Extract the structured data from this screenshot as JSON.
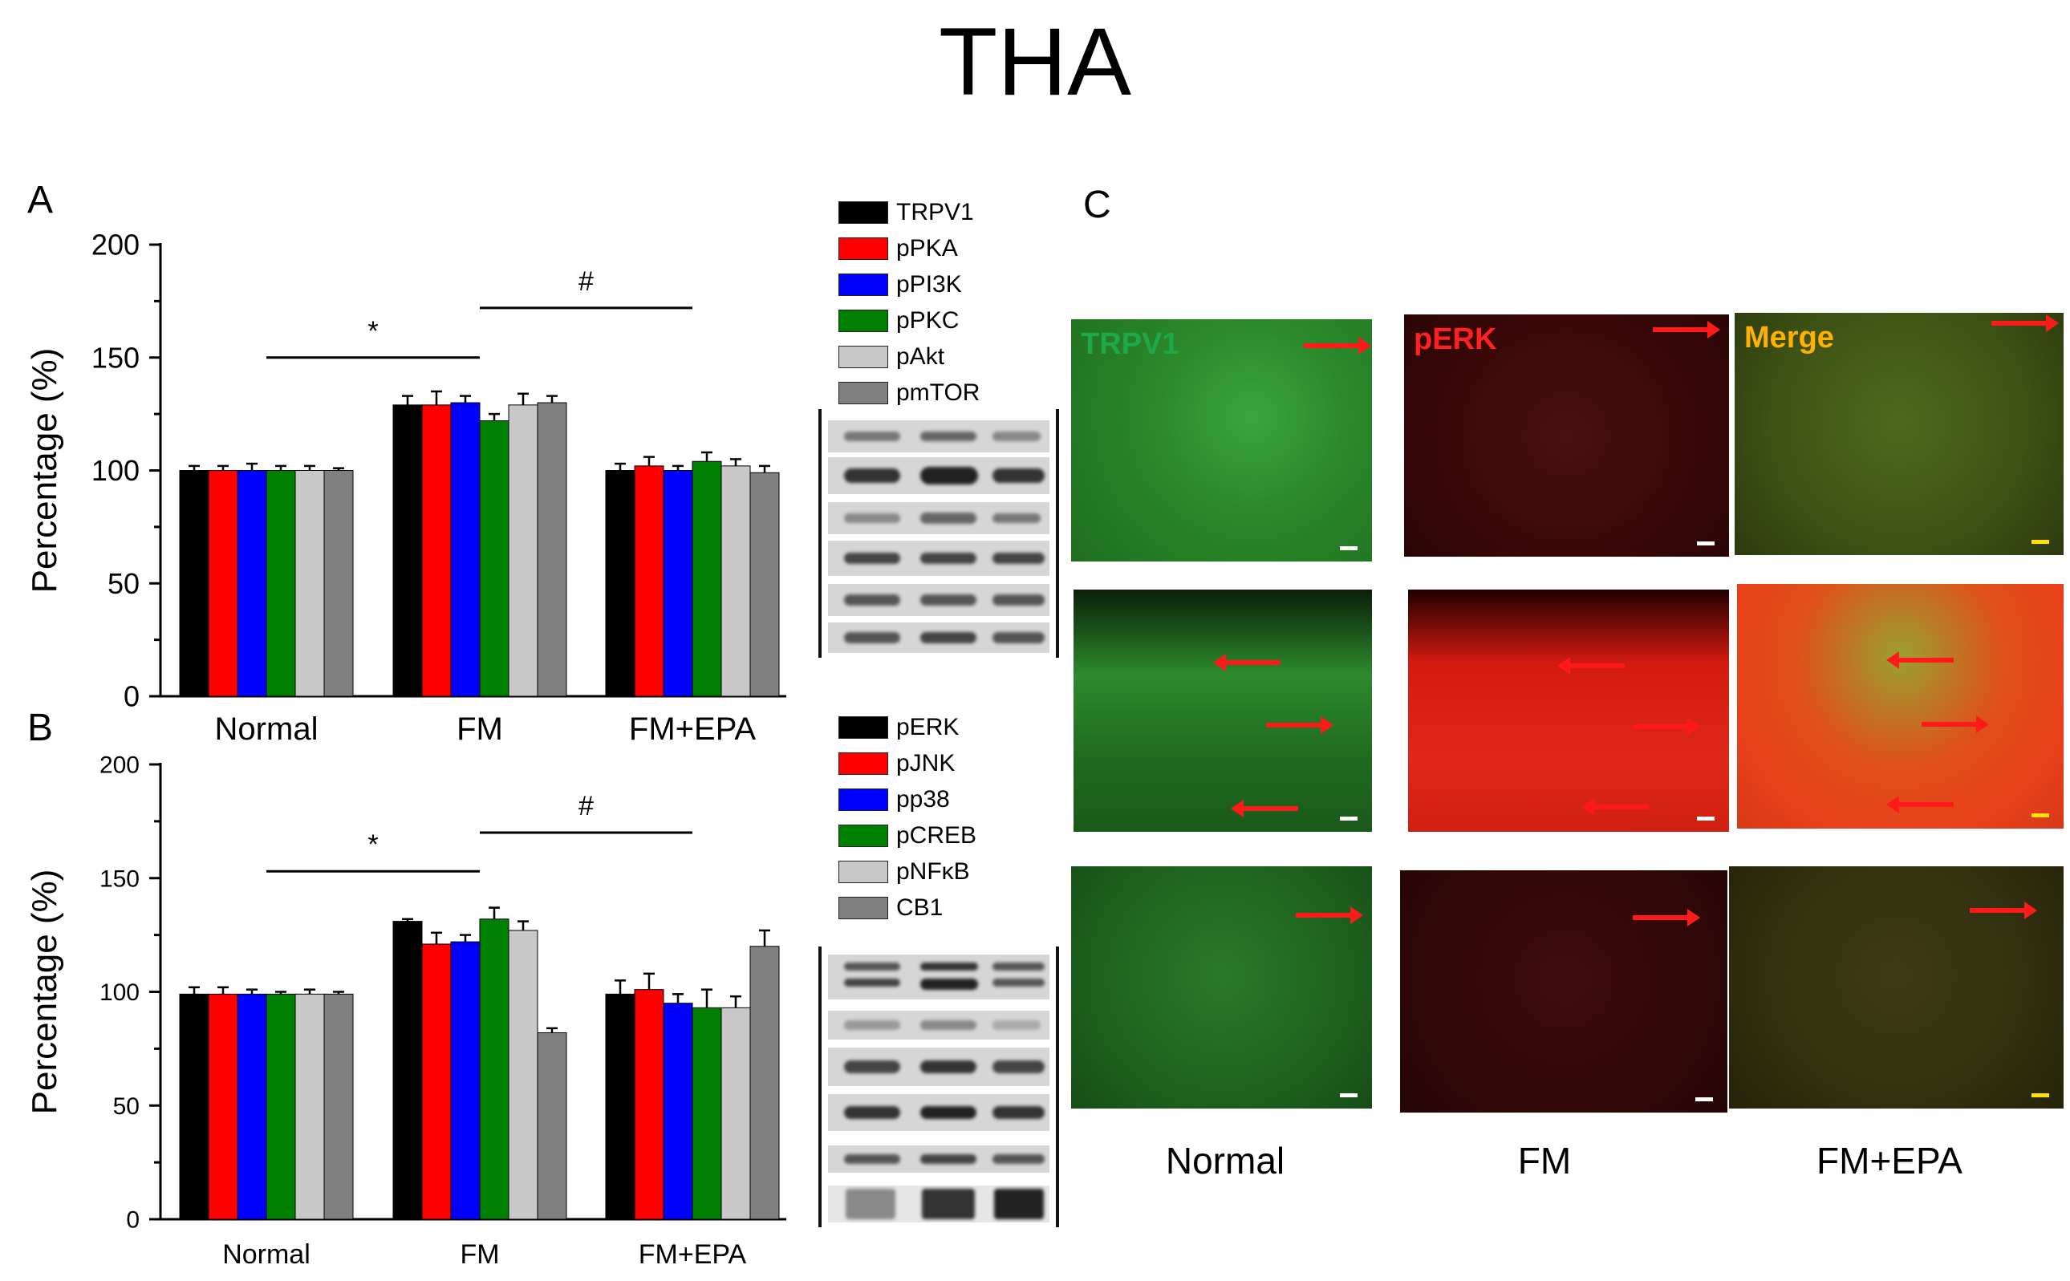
{
  "figure_title": "THA",
  "panels": {
    "a": "A",
    "b": "B",
    "c": "C"
  },
  "legend_a": [
    "TRPV1",
    "pPKA",
    "pPI3K",
    "pPKC",
    "pAkt",
    "pmTOR"
  ],
  "legend_b": [
    "pERK",
    "pJNK",
    "pp38",
    "pCREB",
    "pNFκB",
    "CB1"
  ],
  "colors": [
    "#000000",
    "#ff0000",
    "#0000ff",
    "#008000",
    "#c8c8c8",
    "#808080"
  ],
  "micrograph": {
    "channel_labels": [
      "TRPV1",
      "pERK",
      "Merge"
    ],
    "channel_colors": [
      "#1fa84a",
      "#ff2020",
      "#ffb000"
    ],
    "column_labels": [
      "Normal",
      "FM",
      "FM+EPA"
    ]
  },
  "chart_data": [
    {
      "type": "bar",
      "panel": "A",
      "categories": [
        "Normal",
        "FM",
        "FM+EPA"
      ],
      "ylabel": "Percentage (%)",
      "ylim": [
        0,
        200
      ],
      "yticks": [
        0,
        50,
        100,
        150,
        200
      ],
      "series": [
        {
          "name": "TRPV1",
          "values": [
            100,
            129,
            100
          ],
          "errors": [
            2,
            4,
            3
          ]
        },
        {
          "name": "pPKA",
          "values": [
            100,
            129,
            102
          ],
          "errors": [
            2,
            6,
            4
          ]
        },
        {
          "name": "pPI3K",
          "values": [
            100,
            130,
            100
          ],
          "errors": [
            3,
            3,
            2
          ]
        },
        {
          "name": "pPKC",
          "values": [
            100,
            122,
            104
          ],
          "errors": [
            2,
            3,
            4
          ]
        },
        {
          "name": "pAkt",
          "values": [
            100,
            129,
            102
          ],
          "errors": [
            2,
            5,
            3
          ]
        },
        {
          "name": "pmTOR",
          "values": [
            100,
            130,
            99
          ],
          "errors": [
            1,
            3,
            3
          ]
        }
      ],
      "annotations": [
        {
          "text": "*",
          "from": "Normal",
          "to": "FM",
          "y": 150
        },
        {
          "text": "#",
          "from": "FM",
          "to": "FM+EPA",
          "y": 172
        }
      ],
      "legend": "right"
    },
    {
      "type": "bar",
      "panel": "B",
      "categories": [
        "Normal",
        "FM",
        "FM+EPA"
      ],
      "ylabel": "Percentage (%)",
      "ylim": [
        0,
        200
      ],
      "yticks": [
        0,
        50,
        100,
        150,
        200
      ],
      "series": [
        {
          "name": "pERK",
          "values": [
            99,
            131,
            99
          ],
          "errors": [
            3,
            1,
            6
          ]
        },
        {
          "name": "pJNK",
          "values": [
            99,
            121,
            101
          ],
          "errors": [
            3,
            5,
            7
          ]
        },
        {
          "name": "pp38",
          "values": [
            99,
            122,
            95
          ],
          "errors": [
            2,
            3,
            4
          ]
        },
        {
          "name": "pCREB",
          "values": [
            99,
            132,
            93
          ],
          "errors": [
            1,
            5,
            8
          ]
        },
        {
          "name": "pNFκB",
          "values": [
            99,
            127,
            93
          ],
          "errors": [
            2,
            4,
            5
          ]
        },
        {
          "name": "CB1",
          "values": [
            99,
            82,
            120
          ],
          "errors": [
            1,
            2,
            7
          ]
        }
      ],
      "annotations": [
        {
          "text": "*",
          "from": "Normal",
          "to": "FM",
          "y": 153
        },
        {
          "text": "#",
          "from": "FM",
          "to": "FM+EPA",
          "y": 170
        }
      ],
      "legend": "right"
    }
  ]
}
